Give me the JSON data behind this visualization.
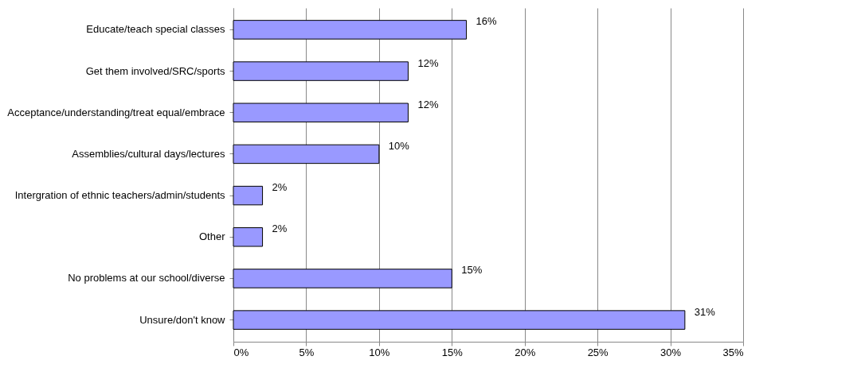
{
  "chart_data": {
    "type": "bar",
    "orientation": "horizontal",
    "categories": [
      "Educate/teach special classes",
      "Get them involved/SRC/sports",
      "Acceptance/understanding/treat equal/embrace",
      "Assemblies/cultural days/lectures",
      "Intergration of ethnic teachers/admin/students",
      "Other",
      "No problems at our school/diverse",
      "Unsure/don't know"
    ],
    "values": [
      16,
      12,
      12,
      10,
      2,
      2,
      15,
      31
    ],
    "value_labels": [
      "16%",
      "12%",
      "12%",
      "10%",
      "2%",
      "2%",
      "15%",
      "31%"
    ],
    "color": "#9999ff",
    "xlim": [
      0,
      35
    ],
    "xticks": [
      {
        "value": 0,
        "label": "0%"
      },
      {
        "value": 5,
        "label": "5%"
      },
      {
        "value": 10,
        "label": "10%"
      },
      {
        "value": 15,
        "label": "15%"
      },
      {
        "value": 20,
        "label": "20%"
      },
      {
        "value": 25,
        "label": "25%"
      },
      {
        "value": 30,
        "label": "30%"
      },
      {
        "value": 35,
        "label": "35%"
      }
    ],
    "grid": "x"
  }
}
